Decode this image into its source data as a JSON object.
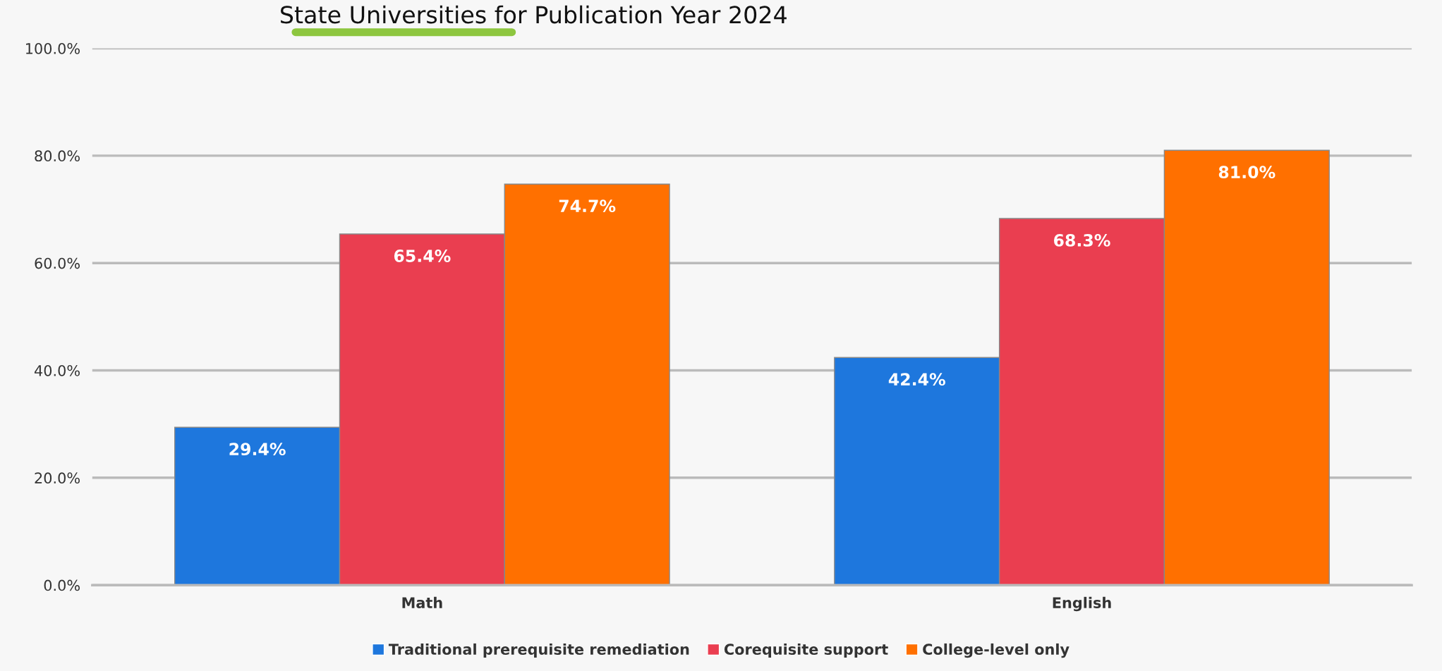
{
  "chart_data": {
    "type": "bar",
    "title": "State Universities for Publication Year 2024",
    "categories": [
      "Math",
      "English"
    ],
    "series": [
      {
        "name": "Traditional prerequisite remediation",
        "color": "#1e77dd",
        "values": [
          29.4,
          42.4
        ],
        "value_labels": [
          "29.4%",
          "42.4%"
        ]
      },
      {
        "name": "Corequisite support",
        "color": "#ea3e50",
        "values": [
          65.4,
          68.3
        ],
        "value_labels": [
          "65.4%",
          "68.3%"
        ]
      },
      {
        "name": "College-level only",
        "color": "#ff7000",
        "values": [
          74.7,
          81.0
        ],
        "value_labels": [
          "74.7%",
          "81.0%"
        ]
      }
    ],
    "ylim": [
      0,
      100
    ],
    "yticks": [
      {
        "value": 0,
        "label": "0.0%"
      },
      {
        "value": 20,
        "label": "20.0%"
      },
      {
        "value": 40,
        "label": "40.0%"
      },
      {
        "value": 60,
        "label": "60.0%"
      },
      {
        "value": 80,
        "label": "80.0%"
      },
      {
        "value": 100,
        "label": "100.0%"
      }
    ],
    "grid": "y",
    "legend": "bottom"
  }
}
